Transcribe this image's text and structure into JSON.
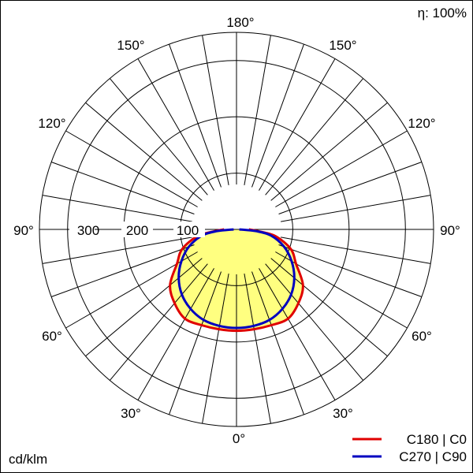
{
  "header": {
    "efficiency": "η: 100%"
  },
  "units": "cd/klm",
  "angle_labels": {
    "top": "180°",
    "upper": "150°",
    "mid_upper": "120°",
    "horizontal": "90°",
    "mid_lower": "60°",
    "lower": "30°",
    "bottom": "0°"
  },
  "radial_labels": [
    "100",
    "200",
    "300"
  ],
  "legend": [
    {
      "label": "C180 | C0",
      "color": "#e00000"
    },
    {
      "label": "C270 | C90",
      "color": "#0000c0"
    }
  ],
  "colors": {
    "fill": "#ffff80",
    "grid": "#000000"
  },
  "chart_data": {
    "type": "polar",
    "angle_unit": "degrees",
    "radial_unit": "cd/klm",
    "radial_range": [
      0,
      350
    ],
    "radial_ticks": [
      100,
      200,
      300
    ],
    "grid": true,
    "legend_placement": "bottom-right",
    "series": [
      {
        "name": "C180 | C0",
        "color": "#e00000",
        "filled": true,
        "angles": [
          0,
          10,
          20,
          30,
          40,
          50,
          60,
          70,
          80,
          85,
          90
        ],
        "values": [
          180,
          180,
          181,
          183,
          171,
          154,
          122,
          103,
          71,
          40,
          22
        ]
      },
      {
        "name": "C270 | C90",
        "color": "#0000c0",
        "filled": false,
        "angles": [
          0,
          10,
          20,
          30,
          40,
          50,
          60,
          70,
          80,
          85,
          90
        ],
        "values": [
          175,
          174,
          171,
          163,
          151,
          134,
          113,
          90,
          62,
          35,
          5
        ]
      }
    ]
  }
}
